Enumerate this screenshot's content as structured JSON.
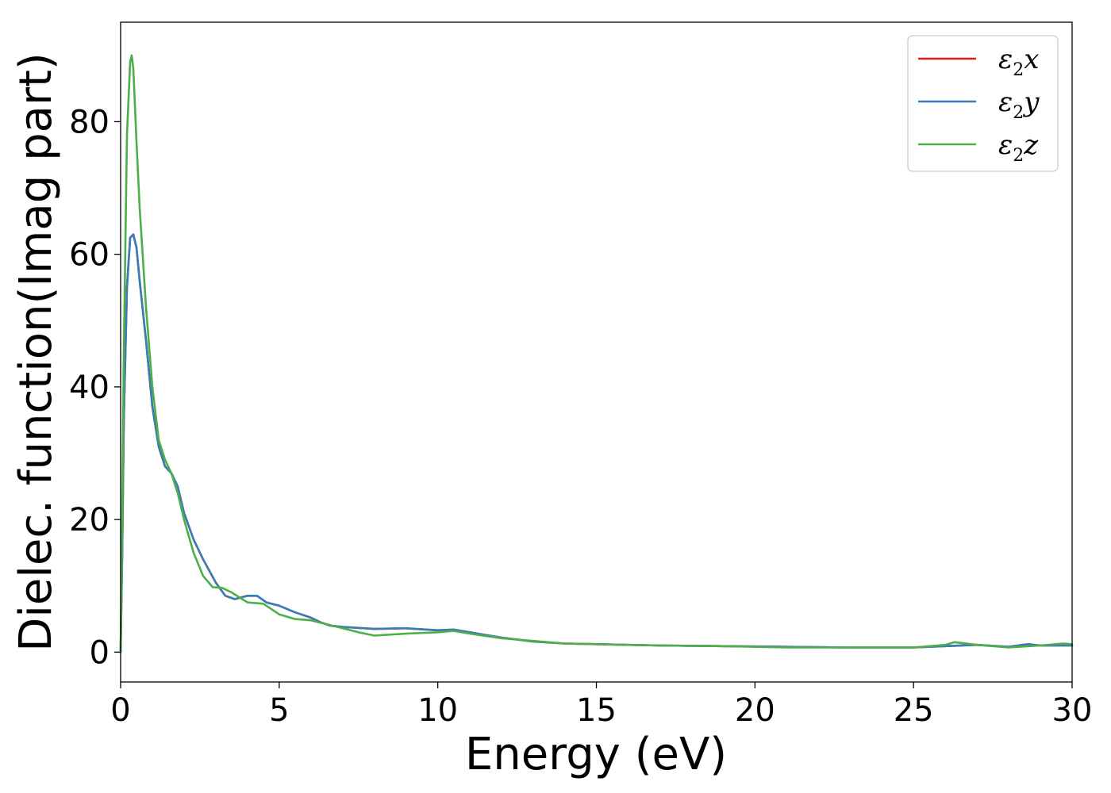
{
  "chart_data": {
    "type": "line",
    "title": "",
    "xlabel": "Energy (eV)",
    "ylabel": "Dielec. function(Imag part)",
    "xlim": [
      0,
      30
    ],
    "ylim": [
      -4.5,
      95
    ],
    "xticks": [
      0,
      5,
      10,
      15,
      20,
      25,
      30
    ],
    "yticks": [
      0,
      20,
      40,
      60,
      80
    ],
    "grid": false,
    "legend_position": "top-right",
    "series": [
      {
        "name": "ε₂x",
        "legend_base": "ε",
        "legend_sub": "2",
        "legend_var": "x",
        "color": "#e41a1c",
        "x": [
          0,
          0.05,
          0.1,
          0.2,
          0.3,
          0.4,
          0.5,
          0.6,
          0.8,
          1.0,
          1.2,
          1.4,
          1.6,
          1.8,
          2.0,
          2.3,
          2.6,
          3.0,
          3.3,
          3.6,
          4.0,
          4.3,
          4.6,
          5.0,
          5.5,
          6.0,
          6.3,
          6.6,
          7.0,
          8.0,
          9.0,
          10.0,
          10.5,
          11.0,
          12.0,
          13.0,
          14.0,
          15.0,
          17.0,
          19.0,
          21.0,
          23.0,
          24.0,
          25.0,
          26.0,
          27.0,
          28.0,
          28.6,
          29.0,
          30.0
        ],
        "y": [
          0,
          15,
          35,
          55,
          62.5,
          63,
          61,
          56,
          47,
          37,
          31,
          28,
          27,
          25,
          21,
          17,
          14,
          10.5,
          8.5,
          8,
          8.5,
          8.5,
          7.5,
          7,
          6,
          5.2,
          4.5,
          4,
          3.8,
          3.5,
          3.6,
          3.3,
          3.4,
          3,
          2.2,
          1.6,
          1.3,
          1.2,
          1.0,
          0.9,
          0.8,
          0.7,
          0.7,
          0.7,
          0.9,
          1.1,
          0.8,
          1.2,
          1.0,
          1.0
        ]
      },
      {
        "name": "ε₂y",
        "legend_base": "ε",
        "legend_sub": "2",
        "legend_var": "y",
        "color": "#377eb8",
        "x": [
          0,
          0.05,
          0.1,
          0.2,
          0.3,
          0.4,
          0.5,
          0.6,
          0.8,
          1.0,
          1.2,
          1.4,
          1.6,
          1.8,
          2.0,
          2.3,
          2.6,
          3.0,
          3.3,
          3.6,
          4.0,
          4.3,
          4.6,
          5.0,
          5.5,
          6.0,
          6.3,
          6.6,
          7.0,
          8.0,
          9.0,
          10.0,
          10.5,
          11.0,
          12.0,
          13.0,
          14.0,
          15.0,
          17.0,
          19.0,
          21.0,
          23.0,
          24.0,
          25.0,
          26.0,
          27.0,
          28.0,
          28.6,
          29.0,
          30.0
        ],
        "y": [
          0,
          15,
          35,
          55,
          62.5,
          63,
          61,
          56,
          47,
          37,
          31,
          28,
          27,
          25,
          21,
          17,
          14,
          10.5,
          8.5,
          8,
          8.5,
          8.5,
          7.5,
          7,
          6,
          5.2,
          4.5,
          4,
          3.8,
          3.5,
          3.6,
          3.3,
          3.4,
          3,
          2.2,
          1.6,
          1.3,
          1.2,
          1.0,
          0.9,
          0.8,
          0.7,
          0.7,
          0.7,
          0.9,
          1.1,
          0.8,
          1.2,
          1.0,
          1.0
        ]
      },
      {
        "name": "ε₂z",
        "legend_base": "ε",
        "legend_sub": "2",
        "legend_var": "z",
        "color": "#4daf4a",
        "x": [
          0,
          0.05,
          0.1,
          0.2,
          0.3,
          0.35,
          0.4,
          0.5,
          0.6,
          0.8,
          1.0,
          1.2,
          1.4,
          1.6,
          1.8,
          2.0,
          2.3,
          2.6,
          2.9,
          3.2,
          3.5,
          4.0,
          4.5,
          5.0,
          5.5,
          6.0,
          6.5,
          7.0,
          7.5,
          8.0,
          9.0,
          10.0,
          10.5,
          11.0,
          12.0,
          13.0,
          14.0,
          15.0,
          17.0,
          19.0,
          21.0,
          23.0,
          25.0,
          26.0,
          26.3,
          27.0,
          28.0,
          29.0,
          29.7,
          30.0
        ],
        "y": [
          0,
          20,
          45,
          78,
          89,
          90,
          88,
          77,
          67,
          52,
          40,
          32,
          29,
          27,
          24,
          20,
          15,
          11.5,
          9.8,
          9.7,
          9,
          7.5,
          7.3,
          5.7,
          5,
          4.8,
          4.2,
          3.6,
          3.0,
          2.5,
          2.8,
          3.0,
          3.2,
          2.8,
          2.1,
          1.7,
          1.3,
          1.2,
          1.0,
          0.9,
          0.7,
          0.7,
          0.7,
          1.1,
          1.5,
          1.1,
          0.7,
          1.0,
          1.3,
          1.2
        ]
      }
    ]
  }
}
